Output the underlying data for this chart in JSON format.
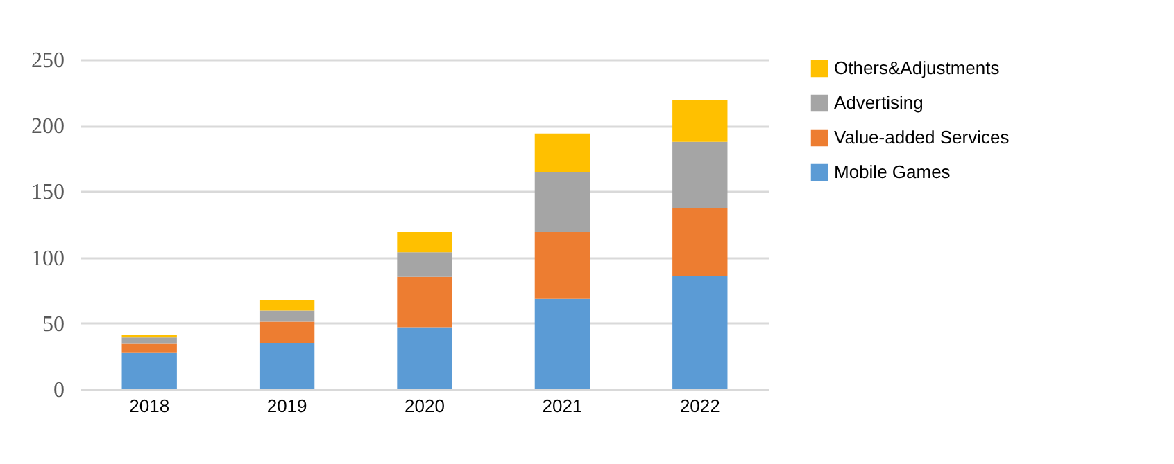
{
  "chart_data": {
    "type": "bar",
    "stacked": true,
    "categories": [
      "2018",
      "2019",
      "2020",
      "2021",
      "2022"
    ],
    "series": [
      {
        "name": "Mobile Games",
        "color": "#5b9bd5",
        "values": [
          28,
          34.7,
          47,
          68.4,
          85.9
        ]
      },
      {
        "name": "Value-added Services",
        "color": "#ed7d31",
        "values": [
          6.4,
          16.5,
          38.2,
          50.8,
          51.2
        ]
      },
      {
        "name": "Advertising",
        "color": "#a5a5a5",
        "values": [
          4.9,
          8.4,
          18.6,
          45.6,
          50.5
        ]
      },
      {
        "name": "Others&Adjustments",
        "color": "#ffc000",
        "values": [
          1.7,
          8.1,
          15.4,
          29.1,
          31.9
        ]
      }
    ],
    "ylim": [
      0,
      250
    ],
    "yticks": [
      0,
      50,
      100,
      150,
      200,
      250
    ],
    "grid": "y",
    "legend": "right"
  }
}
